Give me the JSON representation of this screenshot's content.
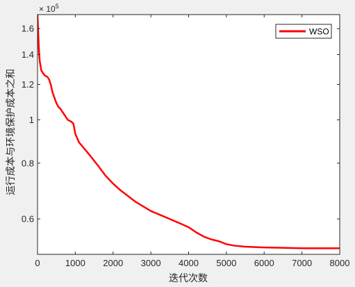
{
  "chart_data": {
    "type": "line",
    "title": "",
    "xlabel": "迭代次数",
    "ylabel": "运行成本与环境保护成本之和",
    "y_scale": "log",
    "y_exponent_label": "× 10",
    "y_exponent_power": "5",
    "xlim": [
      0,
      8000
    ],
    "ylim": [
      0.5,
      1.72
    ],
    "x_ticks": [
      0,
      1000,
      2000,
      3000,
      4000,
      5000,
      6000,
      7000,
      8000
    ],
    "x_tick_labels": [
      "0",
      "1000",
      "2000",
      "3000",
      "4000",
      "5000",
      "6000",
      "7000",
      "8000"
    ],
    "y_ticks": [
      0.6,
      0.8,
      1.0,
      1.2,
      1.4,
      1.6
    ],
    "y_tick_labels": [
      "0.6",
      "0.8",
      "1",
      "1.2",
      "1.4",
      "1.6"
    ],
    "grid": false,
    "legend": {
      "position": "top-right",
      "entries": [
        "WSO"
      ]
    },
    "series": [
      {
        "name": "WSO",
        "color": "#ff0000",
        "x": [
          0,
          10,
          20,
          40,
          60,
          100,
          150,
          200,
          250,
          300,
          350,
          400,
          450,
          500,
          550,
          600,
          700,
          800,
          900,
          950,
          980,
          1000,
          1050,
          1100,
          1200,
          1400,
          1600,
          1800,
          2000,
          2200,
          2400,
          2600,
          2800,
          3000,
          3200,
          3500,
          3800,
          4000,
          4200,
          4400,
          4600,
          4800,
          5000,
          5200,
          5500,
          6000,
          6500,
          7000,
          7500,
          8000
        ],
        "y": [
          1.72,
          1.64,
          1.55,
          1.42,
          1.35,
          1.29,
          1.27,
          1.255,
          1.25,
          1.235,
          1.2,
          1.15,
          1.12,
          1.09,
          1.07,
          1.06,
          1.03,
          1.0,
          0.99,
          0.98,
          0.95,
          0.93,
          0.91,
          0.89,
          0.87,
          0.83,
          0.79,
          0.75,
          0.72,
          0.695,
          0.675,
          0.655,
          0.64,
          0.625,
          0.615,
          0.6,
          0.585,
          0.575,
          0.56,
          0.548,
          0.54,
          0.535,
          0.527,
          0.523,
          0.52,
          0.518,
          0.517,
          0.516,
          0.516,
          0.516
        ]
      }
    ]
  }
}
